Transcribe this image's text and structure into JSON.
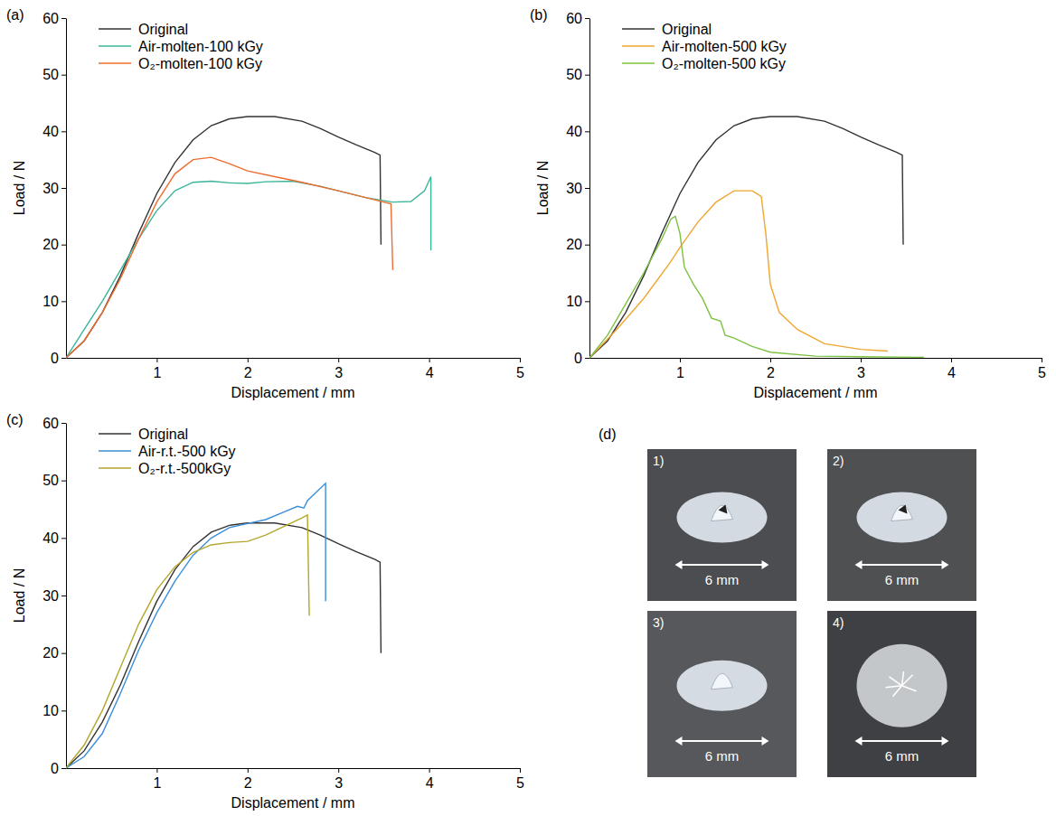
{
  "chart_data": [
    {
      "type": "line",
      "panel": "(a)",
      "x_label": "Displacement / mm",
      "y_label": "Load / N",
      "xlim": [
        0,
        5
      ],
      "ylim": [
        0,
        60
      ],
      "xticks": [
        1,
        2,
        3,
        4,
        5
      ],
      "yticks": [
        0,
        10,
        20,
        30,
        40,
        50,
        60
      ],
      "legend": "upper left",
      "series": [
        {
          "name": "Original",
          "color": "#333333",
          "x": [
            0,
            0.2,
            0.4,
            0.6,
            0.8,
            1.0,
            1.2,
            1.4,
            1.6,
            1.8,
            2.0,
            2.3,
            2.6,
            2.8,
            3.0,
            3.2,
            3.4,
            3.46,
            3.47
          ],
          "values": [
            0,
            3,
            8,
            14.5,
            22,
            29,
            34.5,
            38.5,
            41,
            42.2,
            42.6,
            42.6,
            41.8,
            40.5,
            39,
            37.6,
            36.3,
            35.8,
            20
          ]
        },
        {
          "name": "Air-molten-100 kGy",
          "color": "#3bb59a",
          "x": [
            0,
            0.2,
            0.4,
            0.6,
            0.8,
            1.0,
            1.2,
            1.4,
            1.6,
            1.8,
            2.0,
            2.2,
            2.5,
            2.8,
            3.0,
            3.3,
            3.6,
            3.8,
            3.95,
            4.02,
            4.02
          ],
          "values": [
            0,
            5,
            10,
            15.5,
            21,
            26,
            29.5,
            31,
            31.2,
            30.9,
            30.8,
            31.1,
            31.2,
            30.3,
            29.5,
            28.3,
            27.5,
            27.6,
            29.5,
            32,
            19
          ]
        },
        {
          "name": "O₂-molten-100 kGy",
          "color": "#ee6c30",
          "x": [
            0,
            0.2,
            0.4,
            0.6,
            0.8,
            1.0,
            1.2,
            1.4,
            1.6,
            1.8,
            2.0,
            2.3,
            2.6,
            3.0,
            3.3,
            3.58,
            3.6
          ],
          "values": [
            0,
            3,
            8,
            14,
            21,
            27.5,
            32.5,
            35,
            35.4,
            34.3,
            33,
            32,
            31,
            29.5,
            28.3,
            27.2,
            15.5
          ]
        }
      ]
    },
    {
      "type": "line",
      "panel": "(b)",
      "x_label": "Displacement / mm",
      "y_label": "Load / N",
      "xlim": [
        0,
        5
      ],
      "ylim": [
        0,
        60
      ],
      "xticks": [
        1,
        2,
        3,
        4,
        5
      ],
      "yticks": [
        0,
        10,
        20,
        30,
        40,
        50,
        60
      ],
      "legend": "upper left",
      "series": [
        {
          "name": "Original",
          "color": "#333333",
          "x": [
            0,
            0.2,
            0.4,
            0.6,
            0.8,
            1.0,
            1.2,
            1.4,
            1.6,
            1.8,
            2.0,
            2.3,
            2.6,
            2.8,
            3.0,
            3.2,
            3.4,
            3.46,
            3.47
          ],
          "values": [
            0,
            3,
            8,
            14.5,
            22,
            29,
            34.5,
            38.5,
            41,
            42.2,
            42.6,
            42.6,
            41.8,
            40.5,
            39,
            37.6,
            36.3,
            35.8,
            20
          ]
        },
        {
          "name": "Air-molten-500 kGy",
          "color": "#f0a630",
          "x": [
            0,
            0.3,
            0.6,
            0.9,
            1.0,
            1.2,
            1.4,
            1.6,
            1.8,
            1.9,
            1.95,
            2.0,
            2.1,
            2.3,
            2.6,
            3.0,
            3.3
          ],
          "values": [
            0,
            5,
            10.5,
            17,
            19.5,
            24,
            27.5,
            29.5,
            29.5,
            28.5,
            22,
            13,
            8,
            5,
            2.5,
            1.5,
            1.2
          ]
        },
        {
          "name": "O₂-molten-500 kGy",
          "color": "#7cc242",
          "x": [
            0,
            0.2,
            0.4,
            0.6,
            0.8,
            0.9,
            0.95,
            1.0,
            1.05,
            1.15,
            1.25,
            1.35,
            1.45,
            1.5,
            1.6,
            1.8,
            2.0,
            2.5,
            3.0,
            3.7
          ],
          "values": [
            0,
            4,
            9.5,
            15,
            21,
            24.5,
            25,
            22,
            16,
            13,
            10.5,
            7,
            6.5,
            4,
            3.5,
            2,
            1,
            0.3,
            0.2,
            0.1
          ]
        }
      ]
    },
    {
      "type": "line",
      "panel": "(c)",
      "x_label": "Displacement / mm",
      "y_label": "Load / N",
      "xlim": [
        0,
        5
      ],
      "ylim": [
        0,
        60
      ],
      "xticks": [
        1,
        2,
        3,
        4,
        5
      ],
      "yticks": [
        0,
        10,
        20,
        30,
        40,
        50,
        60
      ],
      "legend": "upper left",
      "series": [
        {
          "name": "Original",
          "color": "#333333",
          "x": [
            0,
            0.2,
            0.4,
            0.6,
            0.8,
            1.0,
            1.2,
            1.4,
            1.6,
            1.8,
            2.0,
            2.3,
            2.6,
            2.8,
            3.0,
            3.2,
            3.4,
            3.46,
            3.47
          ],
          "values": [
            0,
            3,
            8,
            14.5,
            22,
            29,
            34.5,
            38.5,
            41,
            42.2,
            42.6,
            42.6,
            41.8,
            40.5,
            39,
            37.6,
            36.3,
            35.8,
            20
          ]
        },
        {
          "name": "Air-r.t.-500 kGy",
          "color": "#3a8fd9",
          "x": [
            0,
            0.2,
            0.4,
            0.6,
            0.8,
            1.0,
            1.2,
            1.4,
            1.6,
            1.8,
            2.0,
            2.2,
            2.4,
            2.55,
            2.62,
            2.66,
            2.86,
            2.86
          ],
          "values": [
            0,
            2,
            6,
            13,
            20.5,
            27,
            32.5,
            37,
            40,
            41.8,
            42.5,
            43.2,
            44.5,
            45.5,
            45.2,
            46.5,
            49.5,
            29
          ]
        },
        {
          "name": "O₂-r.t.-500kGy",
          "color": "#b3a62a",
          "x": [
            0,
            0.2,
            0.4,
            0.6,
            0.8,
            1.0,
            1.2,
            1.4,
            1.6,
            1.8,
            2.0,
            2.2,
            2.4,
            2.6,
            2.66,
            2.68
          ],
          "values": [
            0,
            4,
            10,
            17.5,
            25,
            31,
            35,
            37.5,
            38.8,
            39.2,
            39.4,
            40.5,
            42,
            43.5,
            44,
            26.5
          ]
        }
      ]
    }
  ],
  "photo_panel": {
    "panel": "(d)",
    "photos": [
      {
        "label": "1)",
        "scale_bar": "6 mm"
      },
      {
        "label": "2)",
        "scale_bar": "6 mm"
      },
      {
        "label": "3)",
        "scale_bar": "6 mm"
      },
      {
        "label": "4)",
        "scale_bar": "6 mm"
      }
    ]
  }
}
